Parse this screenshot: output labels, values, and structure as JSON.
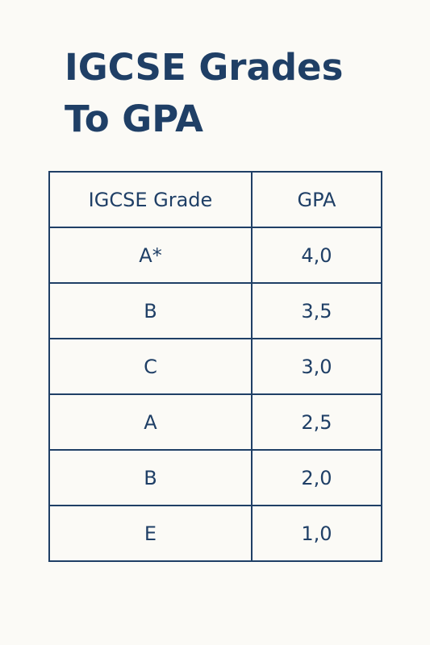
{
  "title": {
    "line1": "IGCSE Grades",
    "line2": "To GPA"
  },
  "table": {
    "headers": [
      "IGCSE Grade",
      "GPA"
    ],
    "rows": [
      {
        "grade": "A*",
        "gpa": "4,0"
      },
      {
        "grade": "B",
        "gpa": "3,5"
      },
      {
        "grade": "C",
        "gpa": "3,0"
      },
      {
        "grade": "A",
        "gpa": "2,5"
      },
      {
        "grade": "B",
        "gpa": "2,0"
      },
      {
        "grade": "E",
        "gpa": "1,0"
      }
    ]
  }
}
